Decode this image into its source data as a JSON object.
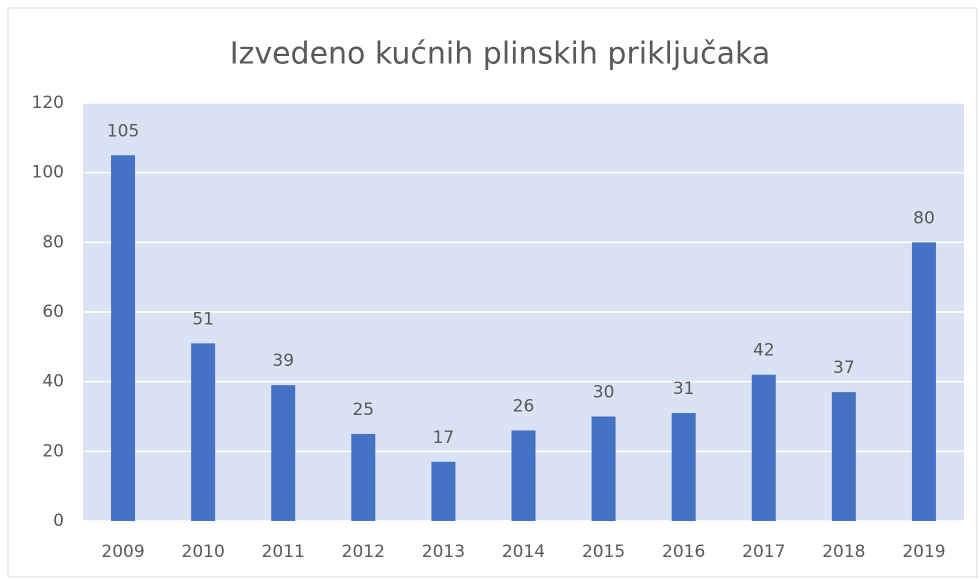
{
  "chart_data": {
    "type": "bar",
    "title": "Izvedeno kućnih plinskih priključaka",
    "categories": [
      "2009",
      "2010",
      "2011",
      "2012",
      "2013",
      "2014",
      "2015",
      "2016",
      "2017",
      "2018",
      "2019"
    ],
    "values": [
      105,
      51,
      39,
      25,
      17,
      26,
      30,
      31,
      42,
      37,
      80
    ],
    "color": "#4472c4",
    "ylim": [
      0,
      120
    ],
    "yticks": [
      0,
      20,
      40,
      60,
      80,
      100,
      120
    ],
    "grid": true
  }
}
